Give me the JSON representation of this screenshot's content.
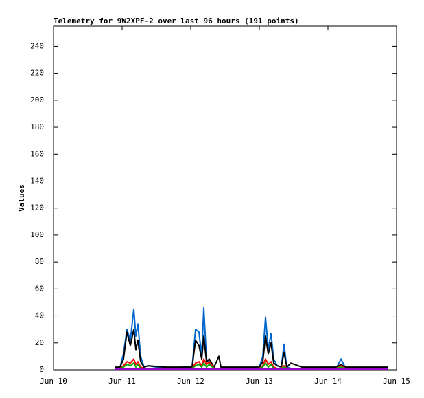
{
  "chart_data": {
    "type": "line",
    "title": "Telemetry for 9W2XPF-2 over last 96 hours (191 points)",
    "y_label": "Values",
    "xlim": [
      10,
      15
    ],
    "xticks": [
      {
        "value": 10,
        "label": "Jun 10"
      },
      {
        "value": 11,
        "label": "Jun 11"
      },
      {
        "value": 12,
        "label": "Jun 12"
      },
      {
        "value": 13,
        "label": "Jun 13"
      },
      {
        "value": 14,
        "label": "Jun 14"
      },
      {
        "value": 15,
        "label": "Jun 15"
      }
    ],
    "ylim": [
      0,
      255
    ],
    "yticks": [
      0,
      20,
      40,
      60,
      80,
      100,
      120,
      140,
      160,
      180,
      200,
      220,
      240
    ],
    "x": [
      10.9,
      10.97,
      11.02,
      11.07,
      11.12,
      11.17,
      11.2,
      11.23,
      11.27,
      11.32,
      11.38,
      11.62,
      11.87,
      12.02,
      12.07,
      12.12,
      12.16,
      12.19,
      12.23,
      12.27,
      12.34,
      12.41,
      12.44,
      12.62,
      12.82,
      13.0,
      13.05,
      13.09,
      13.13,
      13.17,
      13.21,
      13.26,
      13.32,
      13.36,
      13.4,
      13.46,
      13.62,
      13.92,
      14.12,
      14.19,
      14.25,
      14.39,
      14.62,
      14.87
    ],
    "series": [
      {
        "color": "#0066cc",
        "values": [
          1,
          2,
          12,
          30,
          22,
          45,
          25,
          34,
          10,
          2,
          3,
          1,
          2,
          2,
          30,
          28,
          10,
          46,
          8,
          5,
          1,
          1,
          1,
          1,
          1,
          2,
          10,
          39,
          15,
          27,
          8,
          3,
          2,
          19,
          2,
          1,
          1,
          1,
          1,
          8,
          2,
          1,
          1,
          1
        ]
      },
      {
        "color": "#000000",
        "values": [
          2,
          2,
          8,
          28,
          18,
          30,
          15,
          22,
          6,
          2,
          3,
          2,
          2,
          2,
          22,
          18,
          8,
          25,
          6,
          8,
          2,
          10,
          2,
          2,
          2,
          2,
          6,
          25,
          12,
          20,
          5,
          3,
          2,
          13,
          2,
          5,
          2,
          2,
          2,
          4,
          2,
          2,
          2,
          2
        ]
      },
      {
        "color": "#ff0000",
        "values": [
          1,
          1,
          3,
          6,
          5,
          8,
          4,
          6,
          2,
          1,
          1,
          1,
          1,
          1,
          5,
          6,
          3,
          8,
          4,
          6,
          1,
          1,
          1,
          1,
          1,
          1,
          3,
          8,
          4,
          6,
          2,
          1,
          1,
          3,
          1,
          1,
          1,
          1,
          1,
          3,
          1,
          1,
          1,
          1
        ]
      },
      {
        "color": "#00aa00",
        "values": [
          1,
          1,
          2,
          4,
          3,
          5,
          2,
          4,
          1,
          1,
          1,
          1,
          1,
          1,
          3,
          4,
          2,
          5,
          2,
          4,
          1,
          1,
          1,
          1,
          1,
          1,
          2,
          5,
          2,
          4,
          1,
          1,
          1,
          2,
          1,
          1,
          1,
          1,
          1,
          2,
          1,
          1,
          1,
          1
        ]
      },
      {
        "color": "#9900cc",
        "values": [
          0.5,
          0.5,
          0.5,
          0.5,
          0.5,
          0.5,
          0.5,
          0.5,
          0.5,
          0.5,
          0.5,
          0.5,
          0.5,
          0.5,
          0.5,
          0.5,
          0.5,
          0.5,
          0.5,
          0.5,
          0.5,
          0.5,
          0.5,
          0.5,
          0.5,
          0.5,
          0.5,
          0.5,
          0.5,
          0.5,
          0.5,
          0.5,
          0.5,
          0.5,
          0.5,
          0.5,
          0.5,
          0.5,
          0.5,
          0.5,
          0.5,
          0.5,
          0.5,
          0.5
        ]
      }
    ]
  }
}
